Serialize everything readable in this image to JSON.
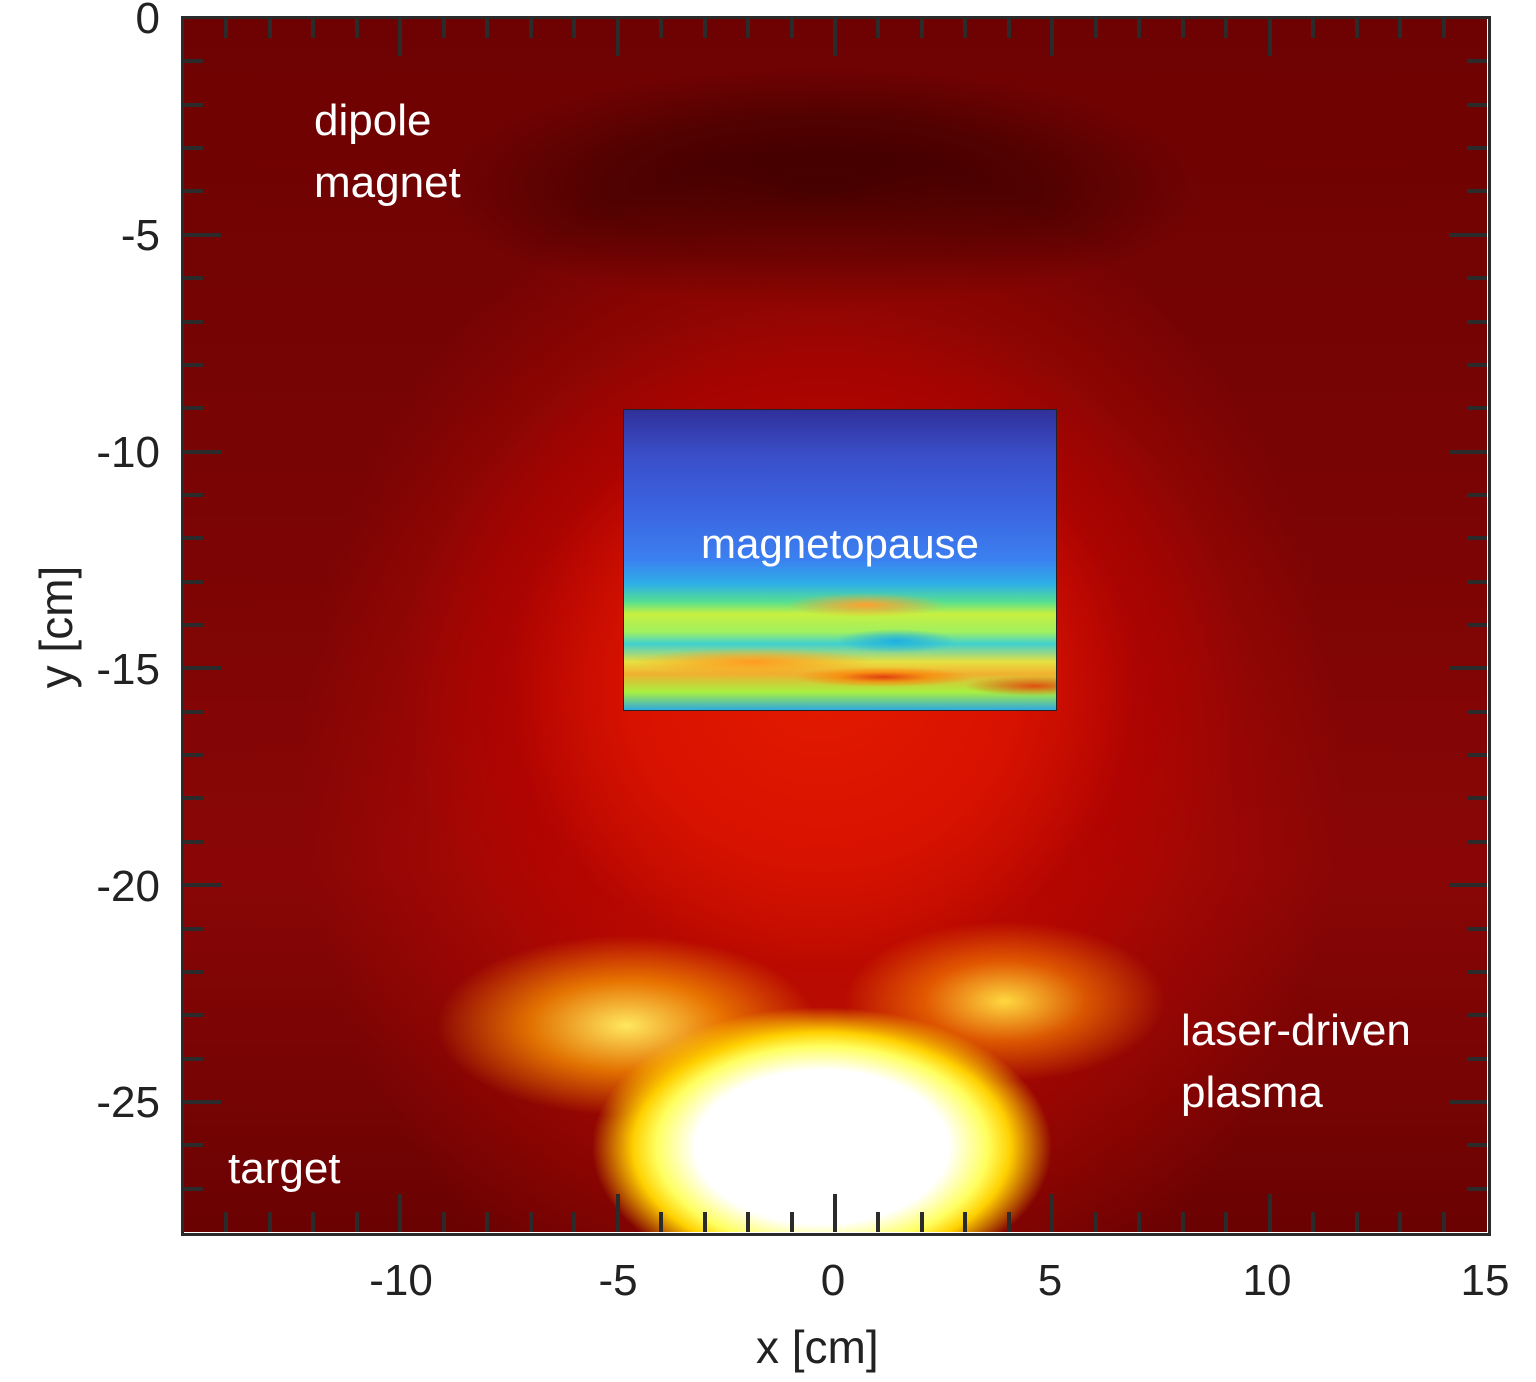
{
  "chart_data": {
    "type": "heatmap",
    "title": "",
    "xlabel": "x [cm]",
    "ylabel": "y [cm]",
    "xlim": [
      -15,
      15
    ],
    "ylim": [
      -28,
      0
    ],
    "x_ticks": [
      -10,
      -5,
      0,
      5,
      10,
      15
    ],
    "y_ticks": [
      0,
      -5,
      -10,
      -15,
      -20,
      -25
    ],
    "colormap": "hot",
    "grid": false,
    "inset": {
      "label": "magnetopause",
      "colormap": "jet",
      "x_range": [
        -5,
        5
      ],
      "y_range": [
        -16,
        -9
      ]
    },
    "annotations": [
      {
        "text": "dipole magnet",
        "x": -12,
        "y": -3
      },
      {
        "text": "magnetopause",
        "x": 0,
        "y": -12
      },
      {
        "text": "laser-driven plasma",
        "x": 8,
        "y": -25
      },
      {
        "text": "target",
        "x": -14,
        "y": -26
      }
    ]
  },
  "labels": {
    "x_axis": "x [cm]",
    "y_axis": "y [cm]",
    "x_ticks": [
      "-10",
      "-5",
      "0",
      "5",
      "10",
      "15"
    ],
    "y_ticks": [
      "0",
      "-5",
      "-10",
      "-15",
      "-20",
      "-25"
    ],
    "dipole_line1": "dipole",
    "dipole_line2": "magnet",
    "magnetopause": "magnetopause",
    "laser_line1": "laser-driven",
    "laser_line2": "plasma",
    "target": "target"
  },
  "colors": {
    "background_dark": "#6e0202",
    "hot_core": "#ffffff",
    "axis": "#2b2b2b"
  }
}
